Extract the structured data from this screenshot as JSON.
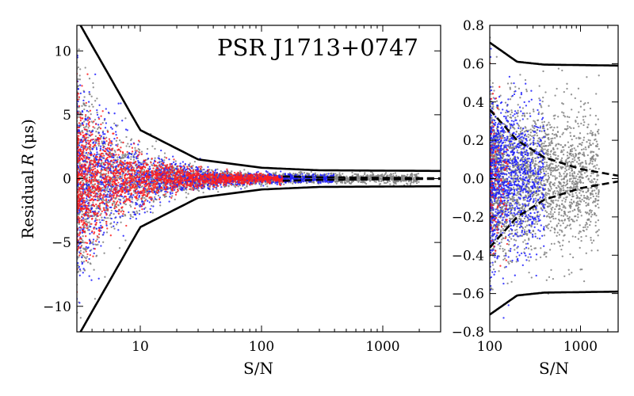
{
  "chart_data": [
    {
      "type": "scatter",
      "title": "PSR J1713+0747",
      "xlabel": "S/N",
      "ylabel": "Residual",
      "ylabel_symbol": "R",
      "ylabel_unit": "(μs)",
      "xscale": "log",
      "xlim": [
        3,
        3000
      ],
      "ylim": [
        -12,
        12
      ],
      "xticks": [
        10,
        100,
        1000
      ],
      "xtick_labels": [
        "10",
        "100",
        "1000"
      ],
      "yticks": [
        -10,
        -5,
        0,
        5,
        10
      ],
      "ytick_labels": [
        "−10",
        "−5",
        "0",
        "5",
        "10"
      ],
      "series": [
        {
          "name": "gray",
          "color": "#808080",
          "sn_range": [
            3,
            2000
          ],
          "count": 3200
        },
        {
          "name": "blue",
          "color": "#1f1fff",
          "sn_range": [
            3,
            400
          ],
          "count": 1600
        },
        {
          "name": "red",
          "color": "#ff1f1f",
          "sn_range": [
            3,
            150
          ],
          "count": 2000
        }
      ],
      "curves": [
        {
          "name": "envelope-upper",
          "style": "solid",
          "values": [
            [
              3,
              12.5
            ],
            [
              10,
              3.8
            ],
            [
              30,
              1.5
            ],
            [
              100,
              0.85
            ],
            [
              300,
              0.65
            ],
            [
              3000,
              0.6
            ]
          ]
        },
        {
          "name": "envelope-lower",
          "style": "solid",
          "values": [
            [
              3,
              -12.5
            ],
            [
              10,
              -3.8
            ],
            [
              30,
              -1.5
            ],
            [
              100,
              -0.85
            ],
            [
              300,
              -0.65
            ],
            [
              3000,
              -0.6
            ]
          ]
        },
        {
          "name": "dashed-upper",
          "style": "dashed",
          "values": [
            [
              150,
              0.17
            ],
            [
              300,
              0.1
            ],
            [
              3000,
              0.02
            ]
          ]
        },
        {
          "name": "dashed-lower",
          "style": "dashed",
          "values": [
            [
              150,
              -0.17
            ],
            [
              300,
              -0.1
            ],
            [
              3000,
              -0.02
            ]
          ]
        }
      ]
    },
    {
      "type": "scatter",
      "xlabel": "S/N",
      "xscale": "log",
      "xlim": [
        100,
        2600
      ],
      "ylim": [
        -0.8,
        0.8
      ],
      "xticks": [
        100,
        1000
      ],
      "xtick_labels": [
        "100",
        "1000"
      ],
      "yticks": [
        -0.8,
        -0.6,
        -0.4,
        -0.2,
        0.0,
        0.2,
        0.4,
        0.6,
        0.8
      ],
      "ytick_labels": [
        "−0.8",
        "−0.6",
        "−0.4",
        "−0.2",
        "0.0",
        "0.2",
        "0.4",
        "0.6",
        "0.8"
      ],
      "series": [
        {
          "name": "gray",
          "color": "#808080",
          "sn_range": [
            100,
            1600
          ],
          "count": 2600
        },
        {
          "name": "blue",
          "color": "#1f1fff",
          "sn_range": [
            100,
            400
          ],
          "count": 1100
        },
        {
          "name": "red",
          "color": "#ff1f1f",
          "sn_range": [
            100,
            160
          ],
          "count": 120
        }
      ],
      "curves": [
        {
          "name": "envelope-upper",
          "style": "solid",
          "values": [
            [
              100,
              0.71
            ],
            [
              200,
              0.61
            ],
            [
              400,
              0.595
            ],
            [
              2600,
              0.59
            ]
          ]
        },
        {
          "name": "envelope-lower",
          "style": "solid",
          "values": [
            [
              100,
              -0.71
            ],
            [
              200,
              -0.61
            ],
            [
              400,
              -0.595
            ],
            [
              2600,
              -0.59
            ]
          ]
        },
        {
          "name": "dashed-upper",
          "style": "dashed",
          "values": [
            [
              100,
              0.36
            ],
            [
              200,
              0.2
            ],
            [
              400,
              0.11
            ],
            [
              1000,
              0.05
            ],
            [
              2600,
              0.015
            ]
          ]
        },
        {
          "name": "dashed-lower",
          "style": "dashed",
          "values": [
            [
              100,
              -0.36
            ],
            [
              200,
              -0.2
            ],
            [
              400,
              -0.11
            ],
            [
              1000,
              -0.05
            ],
            [
              2600,
              -0.015
            ]
          ]
        }
      ]
    }
  ]
}
